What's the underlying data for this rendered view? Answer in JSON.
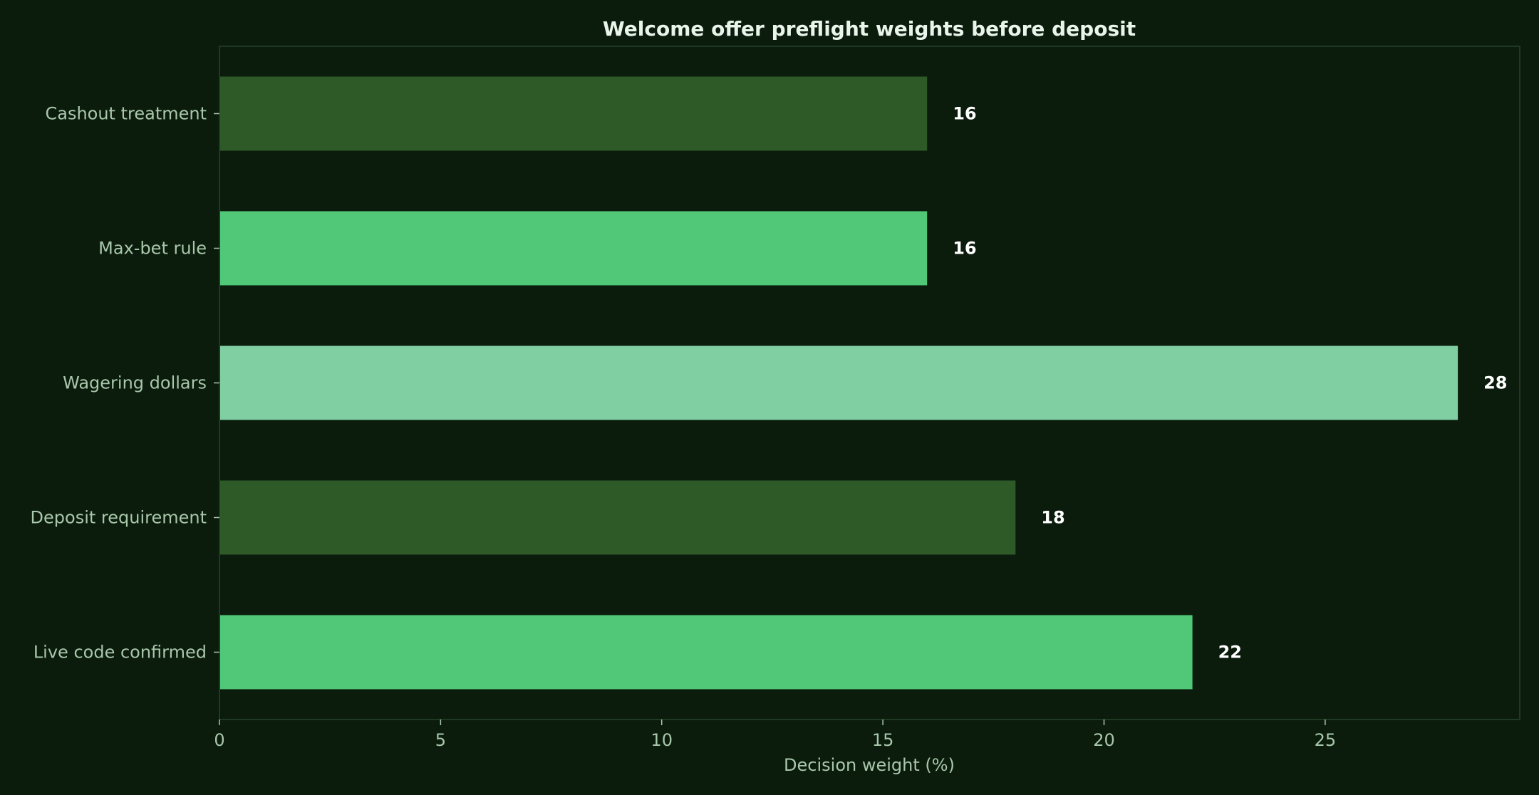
{
  "chart_data": {
    "type": "bar",
    "orientation": "horizontal",
    "title": "Welcome offer preflight weights before deposit",
    "xlabel": "Decision weight (%)",
    "ylabel": "",
    "xlim": [
      0,
      29.4
    ],
    "xticks": [
      0,
      5,
      10,
      15,
      20,
      25
    ],
    "grid": false,
    "categories": [
      "Cashout treatment",
      "Max-bet rule",
      "Wagering dollars",
      "Deposit requirement",
      "Live code confirmed"
    ],
    "values": [
      16,
      16,
      28,
      18,
      22
    ],
    "value_labels": [
      "16",
      "16",
      "28",
      "18",
      "22"
    ],
    "colors": [
      "#2e5a28",
      "#50c878",
      "#80cfa2",
      "#2e5a28",
      "#50c878"
    ]
  },
  "theme": {
    "background": "#0b1c0d",
    "frame": "#1e3a22",
    "text": "#a9c7ab",
    "title": "#e9f5ea",
    "value_text": "#ffffff"
  }
}
